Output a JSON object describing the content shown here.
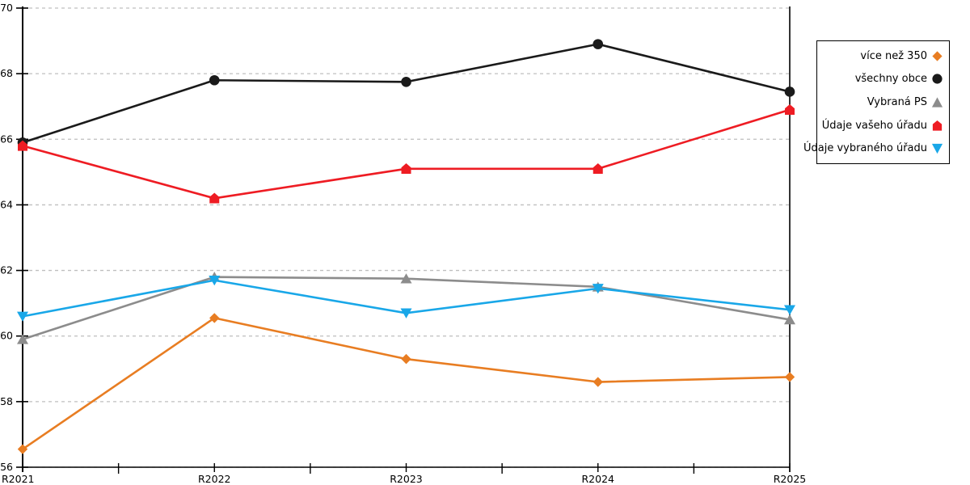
{
  "chart_data": {
    "type": "line",
    "title": "",
    "xlabel": "",
    "ylabel": "",
    "categories": [
      "R2021",
      "R2022",
      "R2023",
      "R2024",
      "R2025"
    ],
    "series": [
      {
        "name": "více než 350",
        "color": "#E87D22",
        "marker": "diamond",
        "values": [
          56.55,
          60.55,
          59.3,
          58.6,
          58.75
        ]
      },
      {
        "name": "všechny obce",
        "color": "#1A1A1A",
        "marker": "circle",
        "values": [
          65.9,
          67.8,
          67.75,
          68.9,
          67.45
        ]
      },
      {
        "name": "Vybraná PS",
        "color": "#8C8C8C",
        "marker": "triangle-up",
        "values": [
          59.9,
          61.8,
          61.75,
          61.5,
          60.5
        ]
      },
      {
        "name": "Údaje vašeho úřadu",
        "color": "#EE1C23",
        "marker": "pentagon",
        "values": [
          65.8,
          64.2,
          65.1,
          65.1,
          66.9
        ]
      },
      {
        "name": "Údaje vybraného úřadu",
        "color": "#19A7E8",
        "marker": "triangle-down",
        "values": [
          60.6,
          61.7,
          60.7,
          61.45,
          60.8
        ]
      }
    ],
    "ylim": [
      56,
      70
    ],
    "y_ticks": [
      56,
      58,
      60,
      62,
      64,
      66,
      68,
      70
    ],
    "grid": true,
    "grid_style": "dashed",
    "legend_position": "right"
  },
  "colors": {
    "background": "#FFFFFF",
    "grid": "#BFBFBF",
    "axis": "#000000",
    "tick_label": "#000000"
  }
}
